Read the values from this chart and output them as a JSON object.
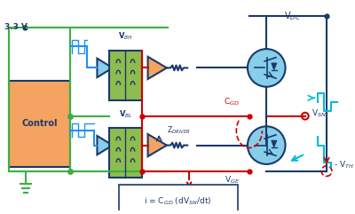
{
  "bg_color": "#ffffff",
  "fig_w": 4.0,
  "fig_h": 2.41,
  "colors": {
    "green": "#3cb043",
    "dark_green": "#2e8b57",
    "blue_line": "#1e90ff",
    "dark_blue": "#003580",
    "navy": "#1a3a6b",
    "red": "#cc0000",
    "orange_fill": "#f4a460",
    "orange_border": "#d2691e",
    "green_fill": "#8fbc4e",
    "green_border": "#5a7a2e",
    "blue_fill": "#87ceeb",
    "blue_border": "#4682b4",
    "cyan": "#00bcd4",
    "light_blue": "#add8e6",
    "ground_red": "#cc0000",
    "dashed_red": "#cc0000"
  },
  "labels": {
    "vdc": "V$_{DC}$",
    "vbh": "V$_{BH}$",
    "vbl": "V$_{BL}$",
    "vsn": "V$_{SN}$",
    "vge": "V$_{GE}$",
    "cgd": "C$_{GD}$",
    "zdriver": "Z$_{DRIVER}$",
    "vth": "- V$_{TH}$",
    "formula": "i = C$_{GD}$ (dV$_{SN}$/dt)",
    "control": "Control",
    "v33": "3.3 V"
  }
}
